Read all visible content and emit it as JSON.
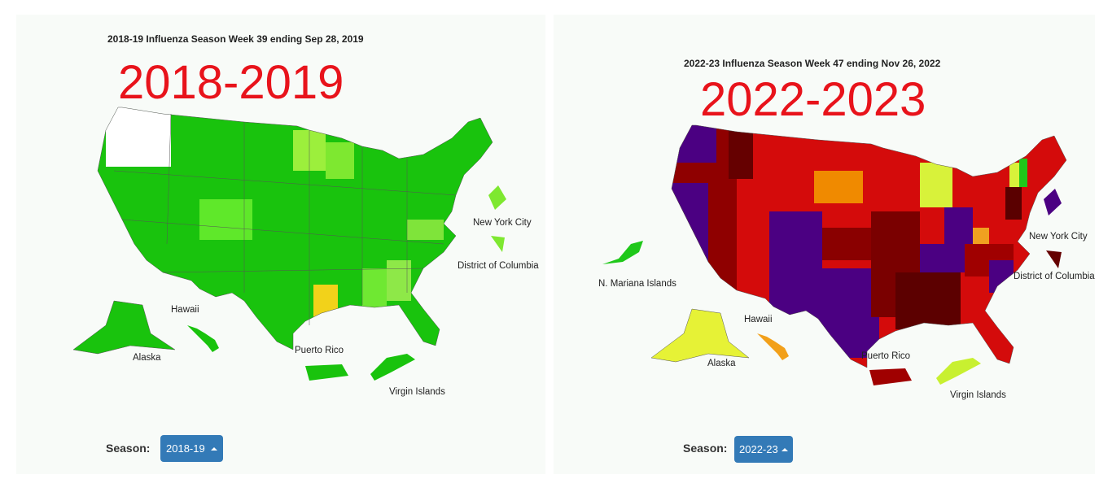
{
  "panels": [
    {
      "subtitle": "2018-19 Influenza Season Week 39 ending Sep 28, 2019",
      "overlay_title": "2018-2019",
      "map_labels": [
        "New York City",
        "District of Columbia",
        "Hawaii",
        "Alaska",
        "Puerto Rico",
        "Virgin Islands"
      ],
      "season_label": "Season:",
      "season_button": "2018-19"
    },
    {
      "subtitle": "2022-23 Influenza Season Week 47 ending Nov 26, 2022",
      "overlay_title": "2022-2023",
      "map_labels": [
        "New York City",
        "District of Columbia",
        "N. Mariana Islands",
        "Hawaii",
        "Alaska",
        "Puerto Rico",
        "Virgin Islands"
      ],
      "season_label": "Season:",
      "season_button": "2022-23"
    }
  ]
}
